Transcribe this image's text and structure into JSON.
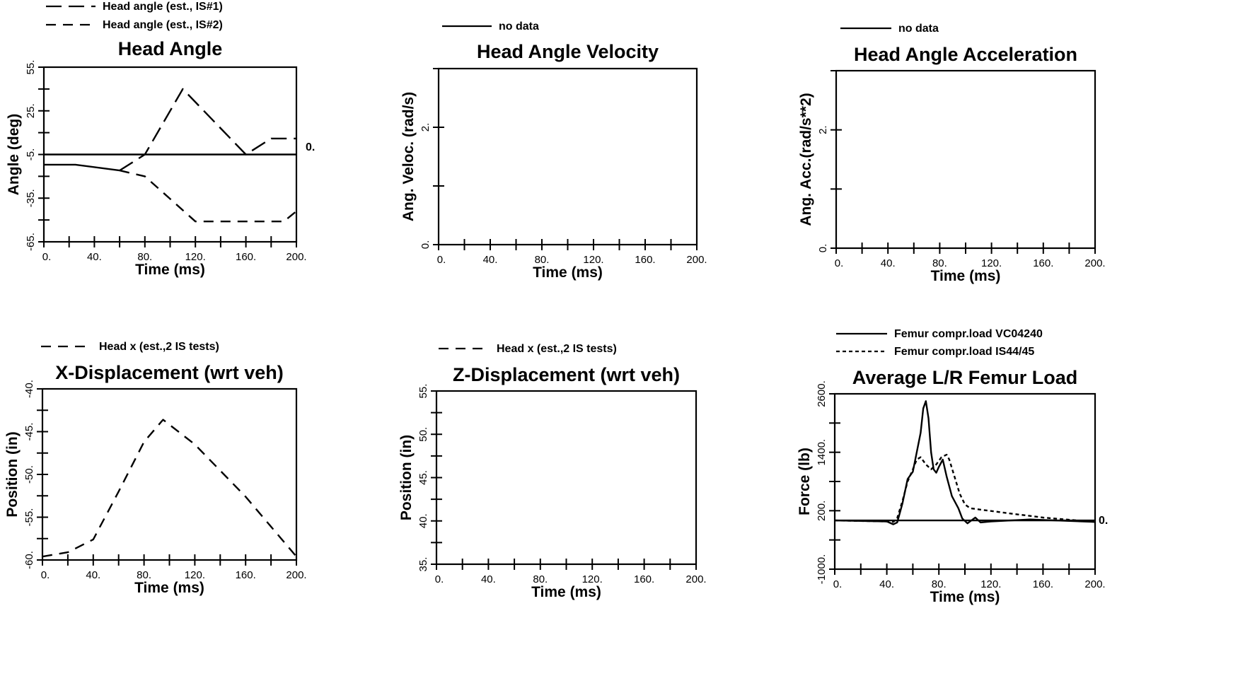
{
  "chart_data": [
    {
      "type": "line",
      "title": "Head Angle",
      "xlabel": "Time (ms)",
      "ylabel": "Angle (deg)",
      "xlim": [
        0,
        200
      ],
      "ylim": [
        -65,
        55
      ],
      "xticks": [
        0,
        40,
        80,
        120,
        160,
        200
      ],
      "xtick_labels": [
        "0.",
        "40.",
        "80.",
        "120.",
        "160.",
        "200."
      ],
      "yticks": [
        -65,
        -35,
        -5,
        25,
        55
      ],
      "ytick_labels": [
        "-65.",
        "-35.",
        "-5.",
        "25.",
        "55."
      ],
      "reference_label": "0.",
      "legend": [
        {
          "label": "Head angle (est., IS#1)",
          "style": "long-dash"
        },
        {
          "label": "Head angle (est., IS#2)",
          "style": "dash"
        }
      ],
      "series": [
        {
          "name": "Head angle (est., IS#1)",
          "style": "long-dash",
          "x": [
            60,
            80,
            110,
            160,
            180,
            200
          ],
          "y": [
            -16,
            -5,
            40,
            -5,
            6,
            6
          ]
        },
        {
          "name": "Head angle (est., IS#2)",
          "style": "dash",
          "x": [
            60,
            80,
            120,
            190,
            200
          ],
          "y": [
            -16,
            -20,
            -51,
            -51,
            -44
          ]
        },
        {
          "name": "",
          "style": "solid",
          "x": [
            0,
            25,
            60
          ],
          "y": [
            -12,
            -12,
            -16
          ]
        },
        {
          "name": "",
          "style": "solid",
          "x": [
            0,
            200
          ],
          "y": [
            -5,
            -5
          ]
        }
      ]
    },
    {
      "type": "line",
      "title": "Head Angle Velocity",
      "xlabel": "Time (ms)",
      "ylabel": "Ang. Veloc. (rad/s)",
      "xlim": [
        0,
        200
      ],
      "ylim": [
        0,
        3
      ],
      "xticks": [
        0,
        40,
        80,
        120,
        160,
        200
      ],
      "xtick_labels": [
        "0.",
        "40.",
        "80.",
        "120.",
        "160.",
        "200."
      ],
      "yticks": [
        0,
        2
      ],
      "ytick_labels": [
        "0.",
        "2."
      ],
      "legend": [
        {
          "label": "no data",
          "style": "solid"
        }
      ],
      "series": []
    },
    {
      "type": "line",
      "title": "Head Angle Acceleration",
      "xlabel": "Time (ms)",
      "ylabel": "Ang. Acc.(rad/s**2)",
      "xlim": [
        0,
        200
      ],
      "ylim": [
        0,
        3
      ],
      "xticks": [
        0,
        40,
        80,
        120,
        160,
        200
      ],
      "xtick_labels": [
        "0.",
        "40.",
        "80.",
        "120.",
        "160.",
        "200."
      ],
      "yticks": [
        0,
        2
      ],
      "ytick_labels": [
        "0.",
        "2."
      ],
      "legend": [
        {
          "label": "no data",
          "style": "solid"
        }
      ],
      "series": []
    },
    {
      "type": "line",
      "title": "X-Displacement (wrt veh)",
      "xlabel": "Time (ms)",
      "ylabel": "Position (in)",
      "xlim": [
        0,
        200
      ],
      "ylim": [
        -60,
        -40
      ],
      "xticks": [
        0,
        40,
        80,
        120,
        160,
        200
      ],
      "xtick_labels": [
        "0.",
        "40.",
        "80.",
        "120.",
        "160.",
        "200."
      ],
      "yticks": [
        -60,
        -55,
        -50,
        -45,
        -40
      ],
      "ytick_labels": [
        "-60.",
        "-55.",
        "-50.",
        "-45.",
        "-40."
      ],
      "legend": [
        {
          "label": "Head x (est.,2 IS tests)",
          "style": "dash"
        }
      ],
      "series": [
        {
          "name": "Head x (est.,2 IS tests)",
          "style": "dash",
          "x": [
            0,
            20,
            40,
            60,
            80,
            95,
            120,
            160,
            200
          ],
          "y": [
            -59.6,
            -59.1,
            -57.6,
            -52,
            -46.2,
            -43.6,
            -46.5,
            -52.6,
            -59.6
          ]
        }
      ]
    },
    {
      "type": "line",
      "title": "Z-Displacement (wrt veh)",
      "xlabel": "Time (ms)",
      "ylabel": "Position (in)",
      "xlim": [
        0,
        200
      ],
      "ylim": [
        35,
        55
      ],
      "xticks": [
        0,
        40,
        80,
        120,
        160,
        200
      ],
      "xtick_labels": [
        "0.",
        "40.",
        "80.",
        "120.",
        "160.",
        "200."
      ],
      "yticks": [
        35,
        40,
        45,
        50,
        55
      ],
      "ytick_labels": [
        "35.",
        "40.",
        "45.",
        "50.",
        "55."
      ],
      "legend": [
        {
          "label": "Head x (est.,2 IS tests)",
          "style": "dash"
        }
      ],
      "series": []
    },
    {
      "type": "line",
      "title": "Average L/R Femur Load",
      "xlabel": "Time (ms)",
      "ylabel": "Force (lb)",
      "xlim": [
        0,
        200
      ],
      "ylim": [
        -1000,
        2600
      ],
      "xticks": [
        0,
        40,
        80,
        120,
        160,
        200
      ],
      "xtick_labels": [
        "0.",
        "40.",
        "80.",
        "120.",
        "160.",
        "200."
      ],
      "yticks": [
        -1000,
        200,
        1400,
        2600
      ],
      "ytick_labels": [
        "-1000.",
        "200.",
        "1400.",
        "2600."
      ],
      "reference_label": "0.",
      "legend": [
        {
          "label": "Femur compr.load VC04240",
          "style": "solid"
        },
        {
          "label": "Femur compr.load IS44/45",
          "style": "dot"
        }
      ],
      "series": [
        {
          "name": "Femur compr.load VC04240",
          "style": "solid",
          "x": [
            0,
            40,
            45,
            48,
            52,
            56,
            60,
            63,
            66,
            68,
            70,
            72,
            74,
            76,
            78,
            80,
            83,
            86,
            90,
            95,
            98,
            102,
            106,
            108,
            112,
            120,
            150,
            200
          ],
          "y": [
            0,
            -20,
            -80,
            -40,
            350,
            850,
            1000,
            1400,
            1800,
            2300,
            2450,
            2100,
            1400,
            1050,
            980,
            1100,
            1250,
            900,
            500,
            250,
            40,
            -60,
            20,
            60,
            -40,
            -20,
            20,
            -30
          ]
        },
        {
          "name": "Femur compr.load IS44/45",
          "style": "dot",
          "x": [
            0,
            40,
            45,
            48,
            52,
            56,
            60,
            63,
            66,
            70,
            74,
            78,
            82,
            86,
            88,
            92,
            96,
            100,
            104,
            110,
            130,
            160,
            200
          ],
          "y": [
            0,
            -20,
            -30,
            50,
            400,
            800,
            1050,
            1250,
            1300,
            1150,
            1050,
            1150,
            1300,
            1350,
            1250,
            900,
            550,
            330,
            250,
            230,
            160,
            60,
            -30
          ]
        },
        {
          "name": "",
          "style": "solid",
          "x": [
            0,
            200
          ],
          "y": [
            0,
            0
          ]
        }
      ]
    }
  ]
}
